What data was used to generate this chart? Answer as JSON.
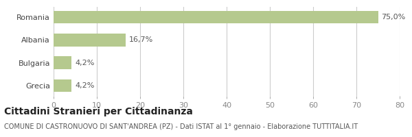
{
  "categories": [
    "Grecia",
    "Bulgaria",
    "Albania",
    "Romania"
  ],
  "values": [
    4.2,
    4.2,
    16.7,
    75.0
  ],
  "labels": [
    "4,2%",
    "4,2%",
    "16,7%",
    "75,0%"
  ],
  "bar_color": "#b5c98e",
  "xlim": [
    0,
    80
  ],
  "xticks": [
    0,
    10,
    20,
    30,
    40,
    50,
    60,
    70,
    80
  ],
  "title": "Cittadini Stranieri per Cittadinanza",
  "subtitle": "COMUNE DI CASTRONUOVO DI SANT'ANDREA (PZ) - Dati ISTAT al 1° gennaio - Elaborazione TUTTITALIA.IT",
  "title_fontsize": 10,
  "subtitle_fontsize": 7,
  "label_fontsize": 8,
  "tick_fontsize": 8,
  "background_color": "#ffffff",
  "grid_color": "#cccccc"
}
